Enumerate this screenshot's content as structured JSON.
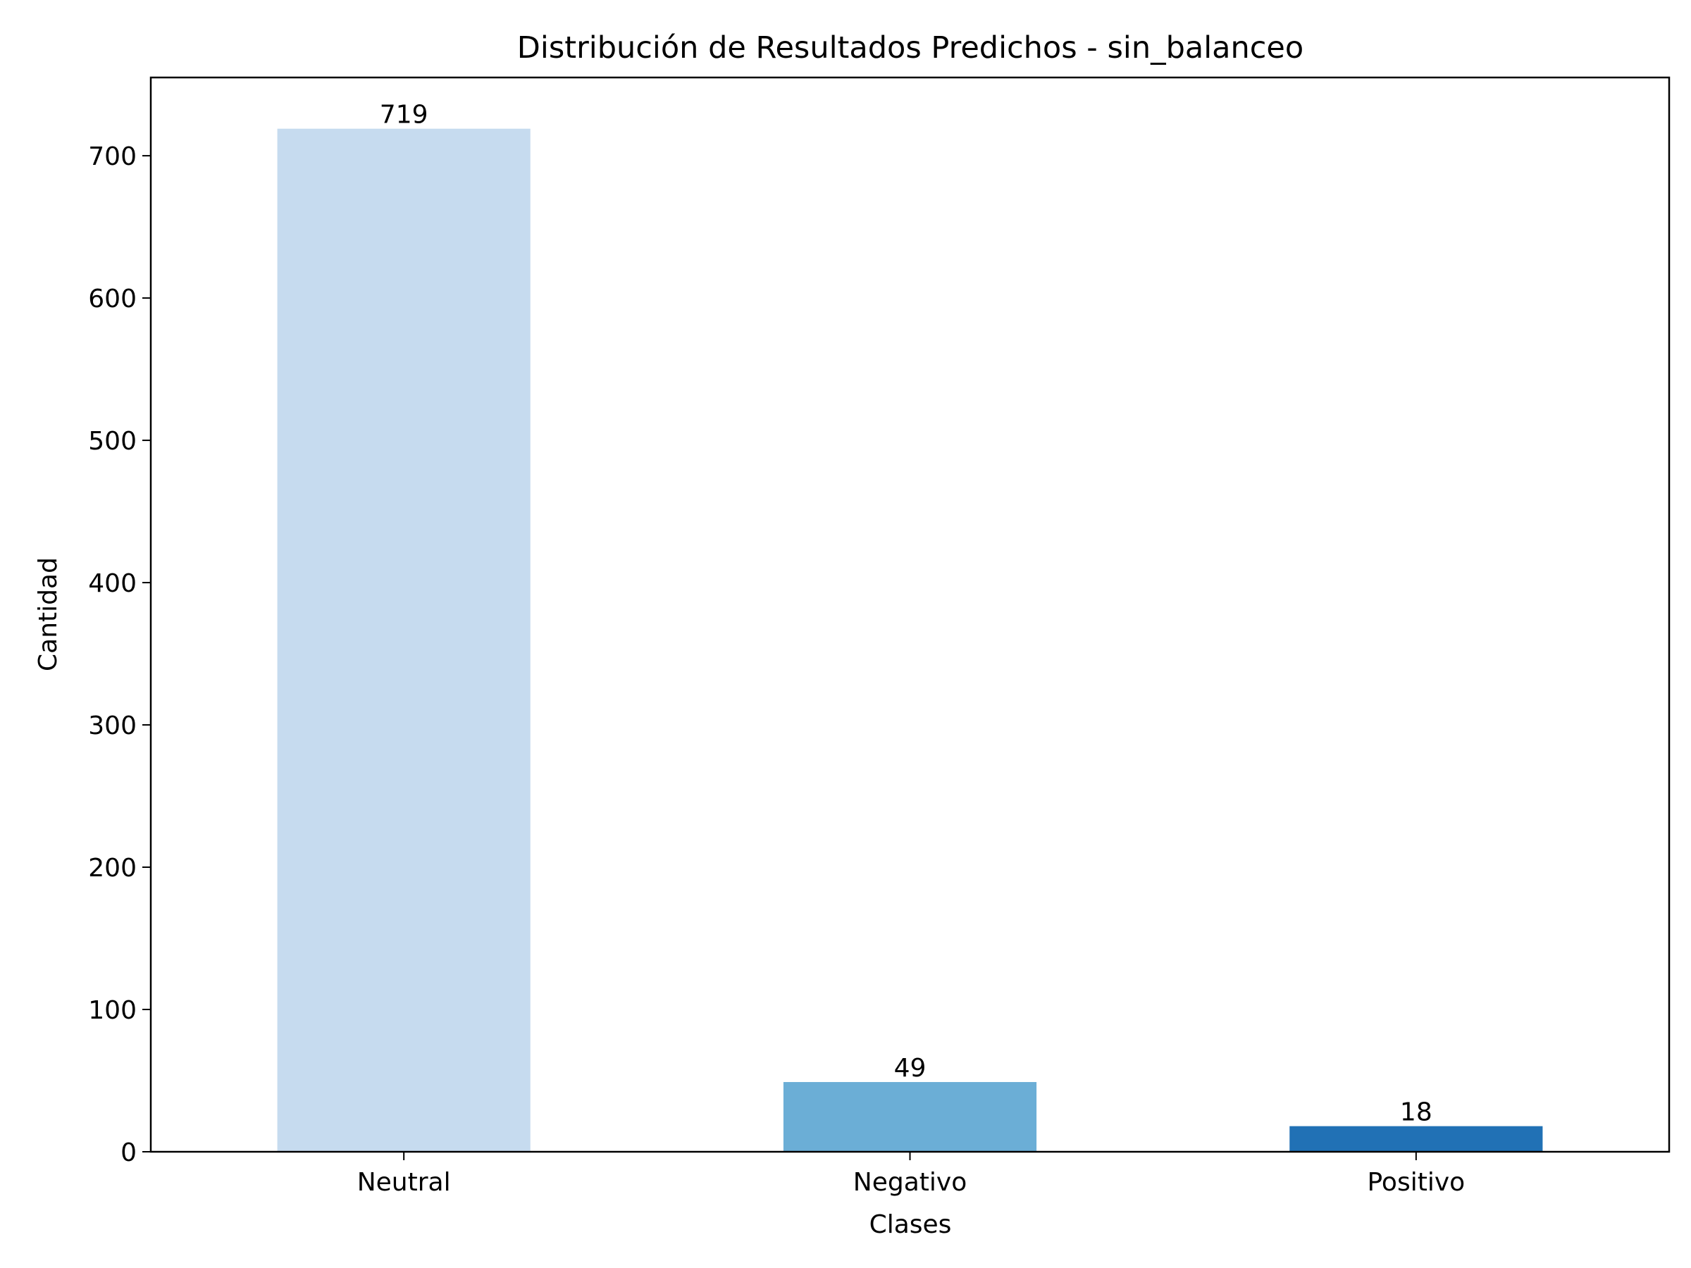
{
  "chart_data": {
    "type": "bar",
    "title": "Distribución de Resultados Predichos - sin_balanceo",
    "xlabel": "Clases",
    "ylabel": "Cantidad",
    "categories": [
      "Neutral",
      "Negativo",
      "Positivo"
    ],
    "values": [
      719,
      49,
      18
    ],
    "bar_labels": [
      "719",
      "49",
      "18"
    ],
    "colors": [
      "#c6dbef",
      "#6baed6",
      "#2171b5"
    ],
    "ylim": [
      0,
      755
    ],
    "yticks": [
      0,
      100,
      200,
      300,
      400,
      500,
      600,
      700
    ],
    "ytick_labels": [
      "0",
      "100",
      "200",
      "300",
      "400",
      "500",
      "600",
      "700"
    ],
    "grid": false,
    "legend": "none"
  }
}
